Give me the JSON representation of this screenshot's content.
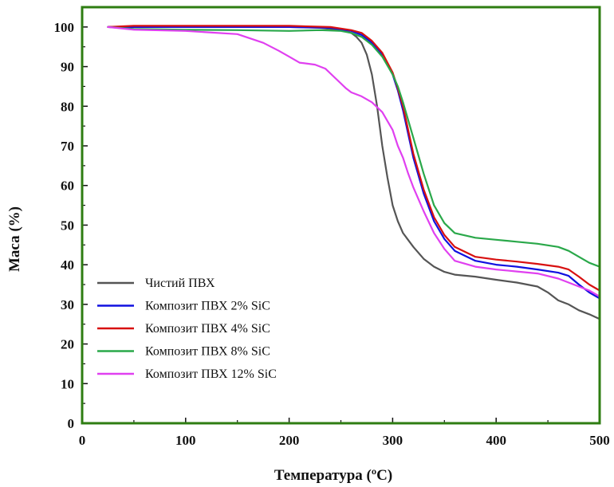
{
  "chart_data": {
    "type": "line",
    "xlabel": "Температура (ºC)",
    "ylabel": "Маса (%)",
    "xlim": [
      0,
      500
    ],
    "ylim": [
      0,
      105
    ],
    "xticks": [
      0,
      100,
      200,
      300,
      400,
      500
    ],
    "yticks": [
      0,
      10,
      20,
      30,
      40,
      50,
      60,
      70,
      80,
      90,
      100
    ],
    "grid": false,
    "legend_position": "bottom-left",
    "frame_color": "#2e7d12",
    "series": [
      {
        "name": "Чистий ПВХ",
        "color": "#555555",
        "x": [
          25,
          50,
          100,
          150,
          200,
          230,
          250,
          260,
          265,
          270,
          275,
          280,
          285,
          290,
          295,
          300,
          305,
          310,
          320,
          330,
          340,
          350,
          360,
          380,
          400,
          420,
          440,
          450,
          460,
          470,
          480,
          490,
          500
        ],
        "y": [
          100,
          100,
          100,
          100,
          100,
          99.8,
          99.2,
          98.5,
          97.5,
          96,
          93,
          88,
          80,
          70,
          62,
          55,
          51,
          48,
          44.5,
          41.5,
          39.5,
          38.2,
          37.5,
          37,
          36.2,
          35.5,
          34.5,
          33,
          31,
          30,
          28.5,
          27.5,
          26.3
        ]
      },
      {
        "name": "Композит ПВХ 2% SiC",
        "color": "#1010e0",
        "x": [
          25,
          50,
          100,
          150,
          200,
          240,
          260,
          270,
          280,
          290,
          300,
          305,
          310,
          315,
          320,
          330,
          340,
          350,
          360,
          380,
          400,
          420,
          440,
          460,
          470,
          480,
          490,
          500
        ],
        "y": [
          100,
          100,
          100,
          100,
          100,
          99.8,
          99,
          98,
          96,
          93,
          88,
          84,
          79,
          73,
          67,
          58,
          51,
          46.5,
          43.5,
          41,
          40,
          39.5,
          38.8,
          38,
          37.2,
          35,
          33,
          31.5
        ]
      },
      {
        "name": "Композит ПВХ 4% SiC",
        "color": "#d81010",
        "x": [
          25,
          50,
          100,
          150,
          200,
          240,
          260,
          270,
          280,
          290,
          300,
          305,
          310,
          315,
          320,
          330,
          340,
          350,
          360,
          380,
          400,
          420,
          440,
          460,
          470,
          480,
          490,
          500
        ],
        "y": [
          100,
          100.3,
          100.3,
          100.3,
          100.3,
          100,
          99.2,
          98.5,
          96.5,
          93.5,
          88.5,
          84.5,
          80,
          74,
          68,
          59,
          52,
          47.5,
          44.5,
          42,
          41.3,
          40.8,
          40.2,
          39.5,
          38.8,
          37,
          35,
          33.5
        ]
      },
      {
        "name": "Композит ПВХ 8% SiC",
        "color": "#2aa84a",
        "x": [
          25,
          50,
          100,
          150,
          200,
          230,
          250,
          260,
          270,
          280,
          290,
          300,
          305,
          310,
          315,
          320,
          330,
          340,
          350,
          360,
          380,
          400,
          420,
          440,
          460,
          470,
          480,
          490,
          500
        ],
        "y": [
          100,
          99.5,
          99.3,
          99.2,
          99,
          99.2,
          99,
          98.5,
          97.5,
          95.5,
          92.5,
          88,
          85,
          81,
          76.5,
          72,
          63,
          55,
          50.5,
          48,
          46.8,
          46.3,
          45.8,
          45.3,
          44.5,
          43.5,
          42,
          40.5,
          39.5
        ]
      },
      {
        "name": "Композит ПВХ 12% SiC",
        "color": "#e040f0",
        "x": [
          25,
          50,
          100,
          150,
          175,
          190,
          200,
          210,
          225,
          235,
          245,
          255,
          260,
          270,
          280,
          290,
          300,
          305,
          310,
          315,
          320,
          330,
          340,
          350,
          360,
          380,
          400,
          420,
          440,
          460,
          470,
          480,
          490,
          500
        ],
        "y": [
          100,
          99.3,
          99,
          98.2,
          96,
          94,
          92.5,
          91,
          90.5,
          89.5,
          87,
          84.5,
          83.5,
          82.5,
          81,
          78.5,
          74,
          70,
          67,
          63,
          59.5,
          53.5,
          48,
          44,
          41,
          39.5,
          38.8,
          38.3,
          37.8,
          36.5,
          35.5,
          34.5,
          33.5,
          32
        ]
      }
    ]
  }
}
